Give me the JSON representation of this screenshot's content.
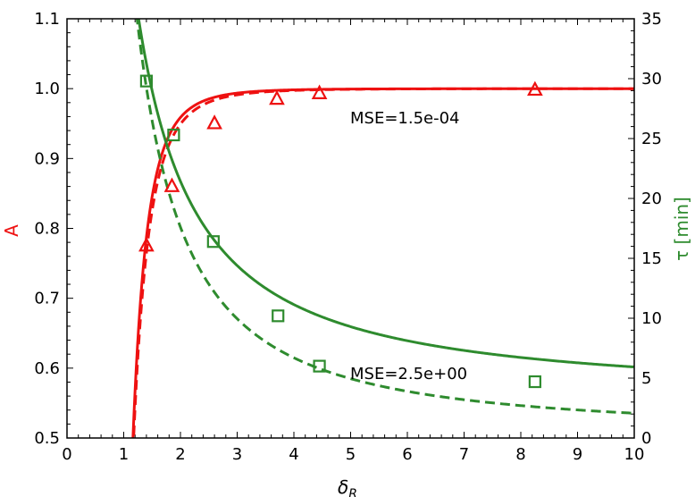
{
  "chart_data": {
    "type": "scatter",
    "xlabel": "δR",
    "ylabel_left": "A",
    "ylabel_right": "τ [min]",
    "xlim": [
      0,
      10
    ],
    "ylim_left": [
      0.5,
      1.1
    ],
    "ylim_right": [
      0,
      35
    ],
    "x_ticks": [
      "0",
      "1",
      "2",
      "3",
      "4",
      "5",
      "6",
      "7",
      "8",
      "9",
      "10"
    ],
    "y_left_ticks": [
      "0.5",
      "0.6",
      "0.7",
      "0.8",
      "0.9",
      "1.0",
      "1.1"
    ],
    "y_right_ticks": [
      "0",
      "5",
      "10",
      "15",
      "20",
      "25",
      "30",
      "35"
    ],
    "colors": {
      "A": "#ee1111",
      "tau": "#2e8b2e"
    },
    "series": [
      {
        "axis": "left",
        "marker": "triangle",
        "x": [
          1.4,
          1.85,
          2.6,
          3.7,
          4.45,
          8.25
        ],
        "y": [
          0.775,
          0.86,
          0.95,
          0.985,
          0.993,
          0.998
        ]
      },
      {
        "axis": "right",
        "marker": "square",
        "x": [
          1.4,
          1.88,
          2.58,
          3.72,
          4.45,
          8.25
        ],
        "y": [
          29.8,
          25.3,
          16.4,
          10.2,
          6.0,
          4.7
        ]
      }
    ],
    "fits": [
      {
        "axis": "left",
        "style": "solid",
        "model": "A = 1 - (1/x)^k",
        "k": 4.6
      },
      {
        "axis": "left",
        "style": "dashed",
        "model": "A = 1 - (1/x)^k",
        "k": 4.3
      },
      {
        "axis": "right",
        "style": "solid",
        "model": "tau = a + b/x^p",
        "a": 3.4,
        "b": 42,
        "p": 1.22
      },
      {
        "axis": "right",
        "style": "dashed",
        "model": "tau = a + b/x^p",
        "a": 0.4,
        "b": 47,
        "p": 1.45
      }
    ],
    "annotations": [
      "MSE=1.5e-04",
      "MSE=2.5e+00"
    ]
  }
}
